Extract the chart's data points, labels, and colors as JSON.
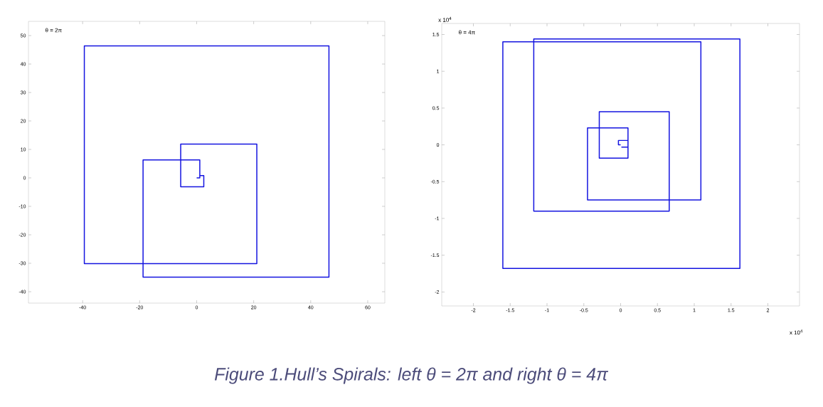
{
  "chart_data": [
    {
      "type": "line",
      "xlim": [
        -59,
        66
      ],
      "ylim": [
        -44,
        55
      ],
      "xticks": [
        -40,
        -20,
        0,
        20,
        40,
        60
      ],
      "yticks": [
        -40,
        -30,
        -20,
        -10,
        0,
        10,
        20,
        30,
        40,
        50
      ],
      "series": [
        {
          "color": "#1414e0",
          "x": [
            0,
            1.1,
            1.1,
            2.5,
            2.5,
            -5.6,
            -5.6,
            21.1,
            21.1,
            -39.4,
            -39.4,
            46.4,
            46.4,
            -18.8,
            -18.8,
            1.1,
            1.1
          ],
          "values": [
            0,
            0,
            0.8,
            0.8,
            -3.1,
            -3.1,
            11.9,
            11.9,
            -30.1,
            -30.1,
            46.4,
            46.4,
            -34.9,
            -34.9,
            6.3,
            6.3,
            0.2
          ]
        }
      ],
      "annotations": [
        "θ = 2π",
        "Figure 1.Hull’s Spirals: left  θ = 2π  and right θ = 4π"
      ]
    },
    {
      "type": "line",
      "xlim": [
        -2.43,
        2.43
      ],
      "ylim": [
        -2.19,
        1.65
      ],
      "xticks": [
        -2,
        -1.5,
        -1,
        -0.5,
        0,
        0.5,
        1,
        1.5,
        2
      ],
      "yticks": [
        -2,
        -1.5,
        -1,
        -0.5,
        0,
        0.5,
        1,
        1.5
      ],
      "series": [
        {
          "color": "#1414e0",
          "x": [
            0,
            -0.03,
            -0.03,
            0.1,
            0.1,
            -0.29,
            -0.29,
            0.66,
            0.66,
            -1.18,
            -1.18,
            1.62,
            1.62,
            -1.6,
            -1.6,
            1.09,
            1.09,
            -0.45,
            -0.45,
            0.1,
            0.1,
            0.01
          ],
          "values": [
            0,
            0,
            0.06,
            0.06,
            -0.18,
            -0.18,
            0.45,
            0.45,
            -0.9,
            -0.9,
            1.44,
            1.44,
            -1.68,
            -1.68,
            1.4,
            1.4,
            -0.75,
            -0.75,
            0.23,
            0.23,
            -0.03,
            -0.03
          ]
        }
      ],
      "annotations": [
        "θ = 4π",
        "x 10$^{4}$",
        "x 10$^{4}$"
      ]
    }
  ]
}
